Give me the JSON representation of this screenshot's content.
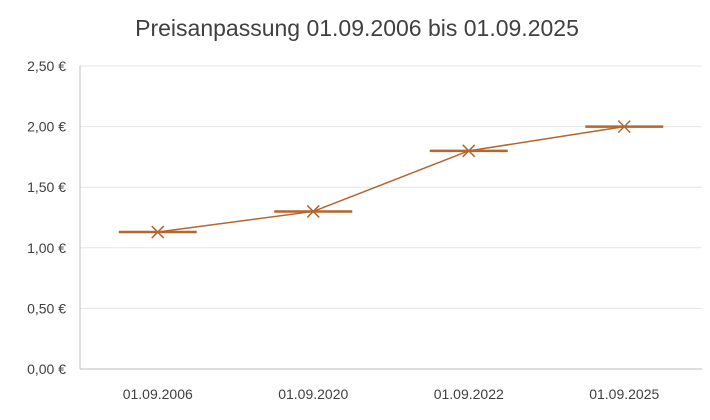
{
  "chart_data": {
    "type": "line",
    "title": "Preisanpassung 01.09.2006 bis 01.09.2025",
    "xlabel": "",
    "ylabel": "",
    "categories": [
      "01.09.2006",
      "01.09.2020",
      "01.09.2022",
      "01.09.2025"
    ],
    "series": [
      {
        "values": [
          1.13,
          1.3,
          1.8,
          2.0
        ]
      }
    ],
    "ylim": [
      0,
      2.5
    ],
    "yticks": [
      0,
      0.5,
      1.0,
      1.5,
      2.0,
      2.5
    ],
    "ytick_labels": [
      "0,00 €",
      "0,50 €",
      "1,00 €",
      "1,50 €",
      "2,00 €",
      "2,50 €"
    ],
    "grid": true,
    "legend": "none",
    "marker": "x-with-dash",
    "colors": {
      "series": "#B5652D",
      "grid": "#E6E6E6",
      "axis": "#BFBFBF",
      "text": "#404040"
    }
  }
}
